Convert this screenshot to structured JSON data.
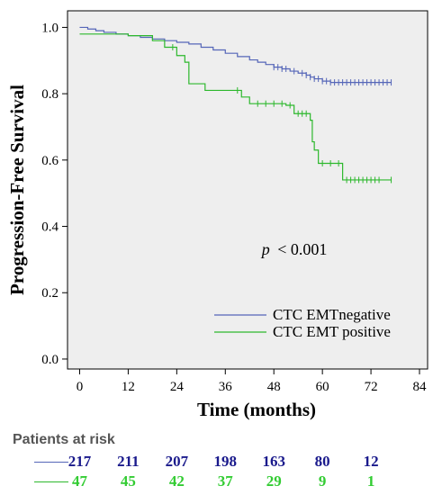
{
  "chart_data": {
    "type": "line",
    "subtype": "kaplan-meier",
    "ylabel": "Progression-Free Survival",
    "xlabel": "Time (months)",
    "xlim": [
      -3,
      86
    ],
    "ylim": [
      -0.03,
      1.05
    ],
    "x_ticks": [
      0,
      12,
      24,
      36,
      48,
      60,
      72,
      84
    ],
    "y_ticks": [
      0.0,
      0.2,
      0.4,
      0.6,
      0.8,
      1.0
    ],
    "y_tick_labels": [
      "0.0",
      "0.2",
      "0.4",
      "0.6",
      "0.8",
      "1.0"
    ],
    "annotation_p": "p",
    "annotation_value": "< 0.001",
    "legend": [
      {
        "name": "CTC EMTnegative",
        "color": "#5566b8"
      },
      {
        "name": "CTC EMT positive",
        "color": "#2db82d"
      }
    ],
    "series": [
      {
        "name": "CTC EMTnegative",
        "color": "#5566b8",
        "steps": [
          [
            0,
            1.0
          ],
          [
            2,
            0.995
          ],
          [
            4,
            0.99
          ],
          [
            6,
            0.985
          ],
          [
            9,
            0.98
          ],
          [
            12,
            0.975
          ],
          [
            15,
            0.97
          ],
          [
            18,
            0.965
          ],
          [
            21,
            0.96
          ],
          [
            24,
            0.955
          ],
          [
            27,
            0.95
          ],
          [
            30,
            0.94
          ],
          [
            33,
            0.932
          ],
          [
            36,
            0.922
          ],
          [
            39,
            0.912
          ],
          [
            42,
            0.902
          ],
          [
            44,
            0.895
          ],
          [
            46,
            0.888
          ],
          [
            48,
            0.88
          ],
          [
            50,
            0.875
          ],
          [
            52,
            0.868
          ],
          [
            54,
            0.862
          ],
          [
            56,
            0.856
          ],
          [
            57,
            0.85
          ],
          [
            58,
            0.845
          ],
          [
            60,
            0.838
          ],
          [
            62,
            0.834
          ],
          [
            77,
            0.834
          ]
        ],
        "censors": [
          48,
          49,
          50,
          51,
          53,
          55,
          56,
          57,
          58,
          59,
          60,
          61,
          62,
          63,
          64,
          65,
          66,
          67,
          68,
          69,
          70,
          71,
          72,
          73,
          74,
          75,
          76,
          77
        ]
      },
      {
        "name": "CTC EMT positive",
        "color": "#2db82d",
        "steps": [
          [
            0,
            0.98
          ],
          [
            12,
            0.975
          ],
          [
            18,
            0.96
          ],
          [
            21,
            0.94
          ],
          [
            24,
            0.915
          ],
          [
            26,
            0.895
          ],
          [
            27,
            0.83
          ],
          [
            30,
            0.83
          ],
          [
            31,
            0.81
          ],
          [
            40,
            0.79
          ],
          [
            42,
            0.77
          ],
          [
            51,
            0.765
          ],
          [
            53,
            0.74
          ],
          [
            57,
            0.72
          ],
          [
            57.5,
            0.655
          ],
          [
            58,
            0.63
          ],
          [
            59,
            0.59
          ],
          [
            64,
            0.59
          ],
          [
            65,
            0.54
          ],
          [
            77,
            0.54
          ]
        ],
        "censors": [
          23,
          39,
          44,
          46,
          48,
          50,
          52,
          54,
          55,
          56,
          60,
          62,
          64,
          66,
          67,
          68,
          69,
          70,
          71,
          72,
          73,
          74,
          77
        ]
      }
    ],
    "at_risk": {
      "title": "Patients at risk",
      "times": [
        0,
        12,
        24,
        36,
        48,
        60,
        72
      ],
      "rows": [
        {
          "name": "CTC EMTnegative",
          "color": "#1a1a8c",
          "line_color": "#5566b8",
          "values": [
            "217",
            "211",
            "207",
            "198",
            "163",
            "80",
            "12"
          ]
        },
        {
          "name": "CTC EMT positive",
          "color": "#33cc33",
          "line_color": "#2db82d",
          "values": [
            "47",
            "45",
            "42",
            "37",
            "29",
            "9",
            "1"
          ]
        }
      ]
    }
  }
}
